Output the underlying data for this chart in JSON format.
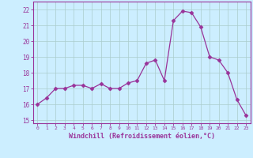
{
  "x": [
    0,
    1,
    2,
    3,
    4,
    5,
    6,
    7,
    8,
    9,
    10,
    11,
    12,
    13,
    14,
    15,
    16,
    17,
    18,
    19,
    20,
    21,
    22,
    23
  ],
  "y": [
    16.0,
    16.4,
    17.0,
    17.0,
    17.2,
    17.2,
    17.0,
    17.3,
    17.0,
    17.0,
    17.35,
    17.5,
    18.6,
    18.8,
    17.5,
    21.3,
    21.9,
    21.8,
    20.9,
    19.0,
    18.8,
    18.0,
    16.3,
    15.3
  ],
  "line_color": "#993399",
  "marker": "D",
  "markersize": 2.5,
  "linewidth": 0.9,
  "background_color": "#cceeff",
  "grid_color": "#aacccc",
  "xlabel": "Windchill (Refroidissement éolien,°C)",
  "ylim": [
    14.8,
    22.5
  ],
  "xlim": [
    -0.5,
    23.5
  ],
  "yticks": [
    15,
    16,
    17,
    18,
    19,
    20,
    21,
    22
  ],
  "xticks": [
    0,
    1,
    2,
    3,
    4,
    5,
    6,
    7,
    8,
    9,
    10,
    11,
    12,
    13,
    14,
    15,
    16,
    17,
    18,
    19,
    20,
    21,
    22,
    23
  ]
}
